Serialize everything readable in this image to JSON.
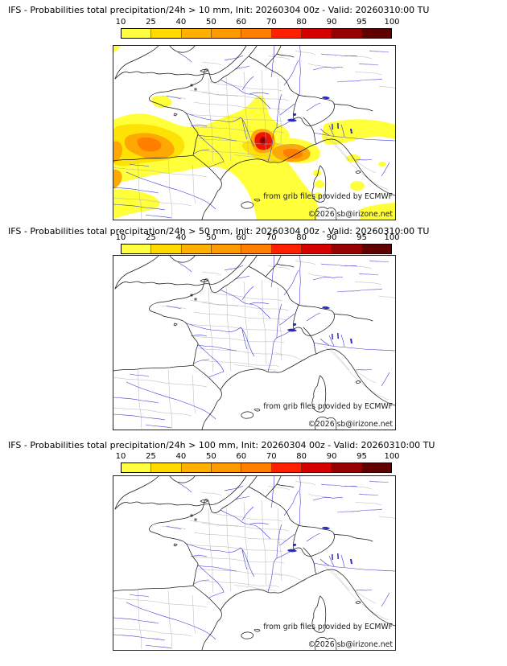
{
  "panels": [
    {
      "title": "IFS - Probabilities total precipitation/24h > 10 mm, Init: 20260304 00z - Valid: 20260310:00 TU",
      "threshold_label": "> 10 mm",
      "shaded": true,
      "shading_summary": "Yellow probability shading over SW France, Pyrenees/N Spain, Gulf of Lion, Ligurian coast, Corsica and Po valley; orange cores over N Spain and Ligurian sea; red/dark-red maximum (80-95%) over the Cevennes/lower Rhone valley."
    },
    {
      "title": "IFS - Probabilities total precipitation/24h > 50 mm, Init: 20260304 00z - Valid: 20260310:00 TU",
      "threshold_label": "> 50 mm",
      "shaded": false,
      "shading_summary": "No shaded probability areas"
    },
    {
      "title": "IFS - Probabilities total precipitation/24h > 100 mm, Init: 20260304 00z - Valid: 20260310:00 TU",
      "threshold_label": "> 100 mm",
      "shaded": false,
      "shading_summary": "No shaded probability areas"
    }
  ],
  "colorbar": {
    "tick_labels": [
      "10",
      "25",
      "40",
      "50",
      "60",
      "70",
      "80",
      "90",
      "95",
      "100"
    ],
    "segment_colors": [
      "#ffff40",
      "#ffd900",
      "#ffb000",
      "#ff9900",
      "#ff7f00",
      "#ff2000",
      "#d40000",
      "#950000",
      "#600000"
    ]
  },
  "watermark": {
    "line1": "from grib files provided by ECMWF",
    "line2": "©2026 sb@irizone.net"
  },
  "overlay_palette": {
    "yellow": "#ffff3a",
    "deep_yellow": "#ffe205",
    "orange": "#ffa702",
    "deep_orange": "#ff7e00",
    "red": "#ec1500",
    "dark_red": "#a40000",
    "darkest_red": "#760000"
  }
}
